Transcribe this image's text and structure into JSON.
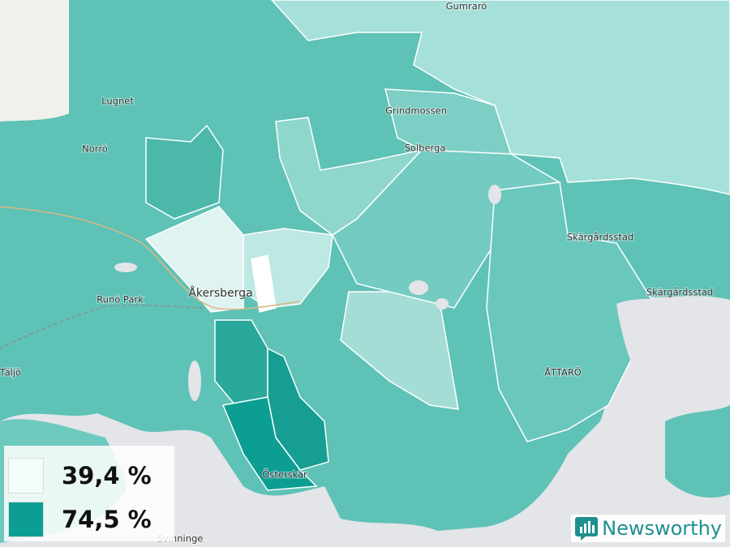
{
  "places": [
    {
      "name": "Gumrarö"
    },
    {
      "name": "Lugnet"
    },
    {
      "name": "Grindmossen"
    },
    {
      "name": "Norrö"
    },
    {
      "name": "Solberga"
    },
    {
      "name": "Skärgårdsstad"
    },
    {
      "name": "Skärgårdsstad"
    },
    {
      "name": "Åkersberga"
    },
    {
      "name": "Runö Park"
    },
    {
      "name": "Täljö"
    },
    {
      "name": "ÅTTARÖ"
    },
    {
      "name": "Österskär"
    },
    {
      "name": "Svinninge"
    }
  ],
  "legend": [
    {
      "label": "39,4 %",
      "color": "#f4fbfb"
    },
    {
      "label": "74,5 %",
      "color": "#0c9e92"
    }
  ],
  "brand": "Newsworthy"
}
